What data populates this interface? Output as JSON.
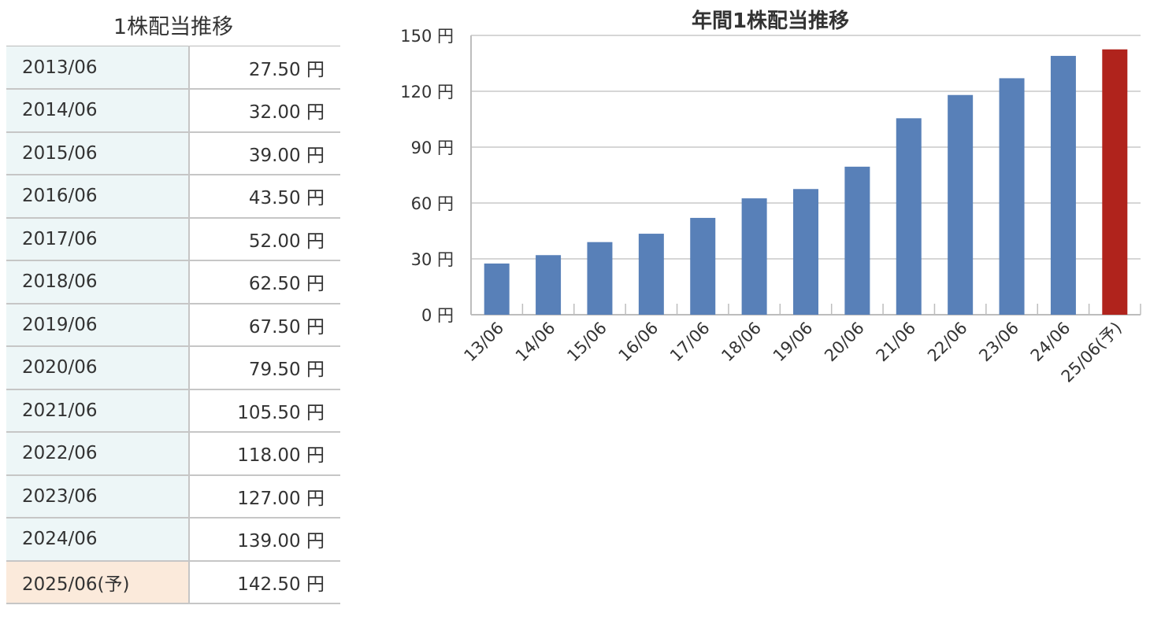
{
  "table": {
    "title": "1株配当推移",
    "rows": [
      {
        "date": "2013/06",
        "value": "27.50 円"
      },
      {
        "date": "2014/06",
        "value": "32.00 円"
      },
      {
        "date": "2015/06",
        "value": "39.00 円"
      },
      {
        "date": "2016/06",
        "value": "43.50 円"
      },
      {
        "date": "2017/06",
        "value": "52.00 円"
      },
      {
        "date": "2018/06",
        "value": "62.50 円"
      },
      {
        "date": "2019/06",
        "value": "67.50 円"
      },
      {
        "date": "2020/06",
        "value": "79.50 円"
      },
      {
        "date": "2021/06",
        "value": "105.50 円"
      },
      {
        "date": "2022/06",
        "value": "118.00 円"
      },
      {
        "date": "2023/06",
        "value": "127.00 円"
      },
      {
        "date": "2024/06",
        "value": "139.00 円"
      },
      {
        "date": "2025/06(予)",
        "value": "142.50 円",
        "forecast": true
      }
    ]
  },
  "colors": {
    "bar": "#5880b8",
    "forecast_bar": "#b0231c",
    "date_cell_bg": "#edf6f7",
    "forecast_date_cell_bg": "#fbeadb",
    "grid": "#c8c8c8"
  },
  "chart_data": {
    "type": "bar",
    "title": "年間1株配当推移",
    "xlabel": "",
    "ylabel": "",
    "categories": [
      "13/06",
      "14/06",
      "15/06",
      "16/06",
      "17/06",
      "18/06",
      "19/06",
      "20/06",
      "21/06",
      "22/06",
      "23/06",
      "24/06",
      "25/06(予)"
    ],
    "values": [
      27.5,
      32.0,
      39.0,
      43.5,
      52.0,
      62.5,
      67.5,
      79.5,
      105.5,
      118.0,
      127.0,
      139.0,
      142.5
    ],
    "forecast_index": 12,
    "ylim": [
      0,
      150
    ],
    "yticks": [
      0,
      30,
      60,
      90,
      120,
      150
    ],
    "ytick_labels": [
      "0 円",
      "30 円",
      "60 円",
      "90 円",
      "120 円",
      "150 円"
    ],
    "grid": true,
    "legend": "none"
  }
}
